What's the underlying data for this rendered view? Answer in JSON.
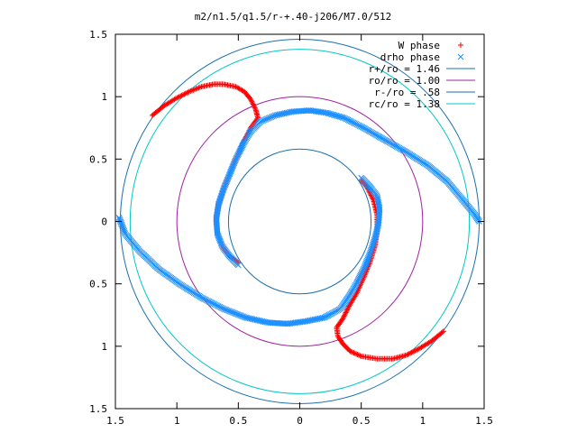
{
  "chart_data": {
    "type": "scatter",
    "title": "m2/n1.5/q1.5/r-+.40-j206/M7.0/512",
    "xlim": [
      -1.5,
      1.5
    ],
    "ylim": [
      -1.5,
      1.5
    ],
    "x_ticks": [
      {
        "value": -1.5,
        "label": "1.5"
      },
      {
        "value": -1.0,
        "label": "1"
      },
      {
        "value": -0.5,
        "label": "0.5"
      },
      {
        "value": 0.0,
        "label": "0"
      },
      {
        "value": 0.5,
        "label": "0.5"
      },
      {
        "value": 1.0,
        "label": "1"
      },
      {
        "value": 1.5,
        "label": "1.5"
      }
    ],
    "y_ticks": [
      {
        "value": 1.5,
        "label": "1.5"
      },
      {
        "value": 1.0,
        "label": "1"
      },
      {
        "value": 0.5,
        "label": "0.5"
      },
      {
        "value": 0.0,
        "label": "0"
      },
      {
        "value": -0.5,
        "label": "0.5"
      },
      {
        "value": -1.0,
        "label": "1"
      },
      {
        "value": -1.5,
        "label": "1.5"
      }
    ],
    "legend_position": "top-right",
    "grid": false,
    "series": [
      {
        "name": "W phase",
        "marker": "plus",
        "color": "#ff0000",
        "arms": [
          [
            [
              -1.2,
              0.85
            ],
            [
              -1.1,
              0.93
            ],
            [
              -1.0,
              0.99
            ],
            [
              -0.9,
              1.04
            ],
            [
              -0.8,
              1.08
            ],
            [
              -0.7,
              1.1
            ],
            [
              -0.62,
              1.1
            ],
            [
              -0.52,
              1.08
            ],
            [
              -0.45,
              1.04
            ],
            [
              -0.4,
              0.98
            ],
            [
              -0.36,
              0.9
            ],
            [
              -0.34,
              0.83
            ],
            [
              -0.4,
              0.75
            ],
            [
              -0.46,
              0.63
            ],
            [
              -0.52,
              0.5
            ],
            [
              -0.57,
              0.38
            ],
            [
              -0.62,
              0.26
            ],
            [
              -0.66,
              0.14
            ],
            [
              -0.68,
              0.02
            ],
            [
              -0.67,
              -0.1
            ],
            [
              -0.63,
              -0.2
            ],
            [
              -0.57,
              -0.28
            ],
            [
              -0.5,
              -0.33
            ]
          ],
          [
            [
              1.17,
              -0.88
            ],
            [
              1.07,
              -0.96
            ],
            [
              0.97,
              -1.02
            ],
            [
              0.87,
              -1.07
            ],
            [
              0.76,
              -1.1
            ],
            [
              0.63,
              -1.1
            ],
            [
              0.5,
              -1.08
            ],
            [
              0.41,
              -1.04
            ],
            [
              0.35,
              -0.98
            ],
            [
              0.31,
              -0.92
            ],
            [
              0.3,
              -0.85
            ],
            [
              0.35,
              -0.78
            ],
            [
              0.4,
              -0.68
            ],
            [
              0.46,
              -0.58
            ],
            [
              0.52,
              -0.45
            ],
            [
              0.57,
              -0.33
            ],
            [
              0.61,
              -0.2
            ],
            [
              0.63,
              -0.08
            ],
            [
              0.63,
              0.05
            ],
            [
              0.6,
              0.17
            ],
            [
              0.55,
              0.27
            ],
            [
              0.5,
              0.33
            ]
          ]
        ]
      },
      {
        "name": "drho phase",
        "marker": "cross",
        "color": "#1e90ff",
        "arms": [
          [
            [
              -0.5,
              -0.35
            ],
            [
              -0.57,
              -0.28
            ],
            [
              -0.63,
              -0.2
            ],
            [
              -0.67,
              -0.1
            ],
            [
              -0.68,
              0.02
            ],
            [
              -0.66,
              0.14
            ],
            [
              -0.62,
              0.26
            ],
            [
              -0.57,
              0.38
            ],
            [
              -0.52,
              0.5
            ],
            [
              -0.46,
              0.62
            ],
            [
              -0.4,
              0.72
            ],
            [
              -0.32,
              0.8
            ],
            [
              -0.2,
              0.85
            ],
            [
              -0.06,
              0.88
            ],
            [
              0.08,
              0.89
            ],
            [
              0.22,
              0.87
            ],
            [
              0.36,
              0.83
            ],
            [
              0.52,
              0.75
            ],
            [
              0.68,
              0.66
            ],
            [
              0.86,
              0.56
            ],
            [
              1.04,
              0.45
            ],
            [
              1.2,
              0.32
            ],
            [
              1.32,
              0.18
            ],
            [
              1.42,
              0.06
            ],
            [
              1.46,
              0.0
            ]
          ],
          [
            [
              0.5,
              0.35
            ],
            [
              0.57,
              0.28
            ],
            [
              0.63,
              0.2
            ],
            [
              0.65,
              0.1
            ],
            [
              0.64,
              -0.02
            ],
            [
              0.61,
              -0.14
            ],
            [
              0.57,
              -0.26
            ],
            [
              0.52,
              -0.38
            ],
            [
              0.46,
              -0.5
            ],
            [
              0.4,
              -0.6
            ],
            [
              0.33,
              -0.7
            ],
            [
              0.2,
              -0.77
            ],
            [
              0.05,
              -0.8
            ],
            [
              -0.1,
              -0.82
            ],
            [
              -0.26,
              -0.81
            ],
            [
              -0.44,
              -0.77
            ],
            [
              -0.62,
              -0.7
            ],
            [
              -0.8,
              -0.61
            ],
            [
              -0.98,
              -0.5
            ],
            [
              -1.15,
              -0.38
            ],
            [
              -1.3,
              -0.24
            ],
            [
              -1.42,
              -0.1
            ],
            [
              -1.47,
              0.03
            ]
          ]
        ]
      }
    ],
    "circles": [
      {
        "name": "r+/ro = 1.46",
        "r": 1.46,
        "color": "#1a6fb0"
      },
      {
        "name": "ro/ro = 1.00",
        "r": 1.0,
        "color": "#a020a0"
      },
      {
        "name": "r-/ro = .58",
        "r": 0.58,
        "color": "#1a6fb0"
      },
      {
        "name": "rc/ro = 1.38",
        "r": 1.38,
        "color": "#00c8c8"
      }
    ]
  }
}
